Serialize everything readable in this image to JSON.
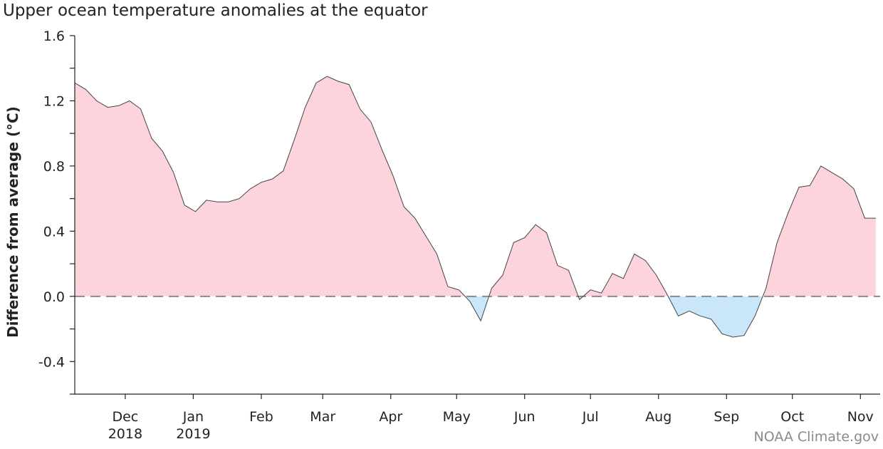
{
  "title": "Upper ocean temperature anomalies at the equator",
  "credit": "NOAA Climate.gov",
  "colors": {
    "positive_fill": "#fed4dc",
    "negative_fill": "#c9e6fb",
    "line": "#444444",
    "zero_line": "#8a8a8a",
    "axis": "#222222"
  },
  "chart_data": {
    "type": "area",
    "title": "Upper ocean temperature anomalies at the equator",
    "ylabel": "Difference from average (°C)",
    "xlabel": "",
    "ylim": [
      -0.6,
      1.6
    ],
    "xlim": [
      "2018-11-08",
      "2019-11-10"
    ],
    "yticks": [
      -0.4,
      0.0,
      0.4,
      0.8,
      1.2,
      1.6
    ],
    "ytick_labels": [
      "-0.4",
      "0.0",
      "0.4",
      "0.8",
      "1.2",
      "1.6"
    ],
    "xticks": [
      {
        "date": "2018-12-01",
        "label": "Dec",
        "sublabel": "2018"
      },
      {
        "date": "2019-01-01",
        "label": "Jan",
        "sublabel": "2019"
      },
      {
        "date": "2019-02-01",
        "label": "Feb",
        "sublabel": ""
      },
      {
        "date": "2019-03-01",
        "label": "Mar",
        "sublabel": ""
      },
      {
        "date": "2019-04-01",
        "label": "Apr",
        "sublabel": ""
      },
      {
        "date": "2019-05-01",
        "label": "May",
        "sublabel": ""
      },
      {
        "date": "2019-06-01",
        "label": "Jun",
        "sublabel": ""
      },
      {
        "date": "2019-07-01",
        "label": "Jul",
        "sublabel": ""
      },
      {
        "date": "2019-08-01",
        "label": "Aug",
        "sublabel": ""
      },
      {
        "date": "2019-09-01",
        "label": "Sep",
        "sublabel": ""
      },
      {
        "date": "2019-10-01",
        "label": "Oct",
        "sublabel": ""
      },
      {
        "date": "2019-11-01",
        "label": "Nov",
        "sublabel": ""
      }
    ],
    "zero_line": "dashed",
    "grid": false,
    "x": [
      "2018-11-08",
      "2018-11-13",
      "2018-11-18",
      "2018-11-23",
      "2018-11-28",
      "2018-12-03",
      "2018-12-08",
      "2018-12-13",
      "2018-12-18",
      "2018-12-23",
      "2018-12-28",
      "2019-01-02",
      "2019-01-07",
      "2019-01-12",
      "2019-01-17",
      "2019-01-22",
      "2019-01-27",
      "2019-02-01",
      "2019-02-06",
      "2019-02-11",
      "2019-02-16",
      "2019-02-21",
      "2019-02-26",
      "2019-03-03",
      "2019-03-08",
      "2019-03-13",
      "2019-03-18",
      "2019-03-23",
      "2019-03-28",
      "2019-04-02",
      "2019-04-07",
      "2019-04-12",
      "2019-04-17",
      "2019-04-22",
      "2019-04-27",
      "2019-05-02",
      "2019-05-07",
      "2019-05-12",
      "2019-05-17",
      "2019-05-22",
      "2019-05-27",
      "2019-06-01",
      "2019-06-06",
      "2019-06-11",
      "2019-06-16",
      "2019-06-21",
      "2019-06-26",
      "2019-07-01",
      "2019-07-06",
      "2019-07-11",
      "2019-07-16",
      "2019-07-21",
      "2019-07-26",
      "2019-07-31",
      "2019-08-05",
      "2019-08-10",
      "2019-08-15",
      "2019-08-20",
      "2019-08-25",
      "2019-08-30",
      "2019-09-04",
      "2019-09-09",
      "2019-09-14",
      "2019-09-19",
      "2019-09-24",
      "2019-09-29",
      "2019-10-04",
      "2019-10-09",
      "2019-10-14",
      "2019-10-19",
      "2019-10-24",
      "2019-10-29",
      "2019-11-03",
      "2019-11-08"
    ],
    "values": [
      1.31,
      1.27,
      1.2,
      1.16,
      1.17,
      1.2,
      1.15,
      0.97,
      0.89,
      0.76,
      0.56,
      0.52,
      0.59,
      0.58,
      0.58,
      0.6,
      0.66,
      0.7,
      0.72,
      0.77,
      0.96,
      1.16,
      1.31,
      1.35,
      1.32,
      1.3,
      1.15,
      1.07,
      0.9,
      0.74,
      0.55,
      0.48,
      0.37,
      0.26,
      0.06,
      0.04,
      -0.03,
      -0.15,
      0.05,
      0.13,
      0.33,
      0.36,
      0.44,
      0.39,
      0.19,
      0.16,
      -0.02,
      0.04,
      0.02,
      0.14,
      0.11,
      0.26,
      0.22,
      0.13,
      0.01,
      -0.12,
      -0.09,
      -0.12,
      -0.14,
      -0.23,
      -0.25,
      -0.24,
      -0.12,
      0.05,
      0.33,
      0.51,
      0.67,
      0.68,
      0.8,
      0.76,
      0.72,
      0.66,
      0.48,
      0.48
    ]
  }
}
